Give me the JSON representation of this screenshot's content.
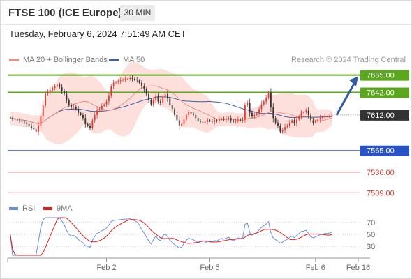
{
  "header": {
    "title": "FTSE 100 (ICE Europe)",
    "timeframe": "30 MIN"
  },
  "datetime": "Tuesday, February 6, 2024 7:51:49 AM CET",
  "legend": {
    "ma20_label": "MA 20 + Bollinger Bands",
    "ma50_label": "MA 50",
    "credit": "Research © 2024 Trading Central"
  },
  "rsi_legend": {
    "rsi_label": "RSI",
    "ma_label": "9MA"
  },
  "colors": {
    "up": "#e8392e",
    "down": "#333333",
    "ma20": "#f08c80",
    "ma50": "#3b5fa8",
    "bands": "#fde0dc",
    "resistance": "#5ba81e",
    "support": "#2952c7",
    "support_light": "#f3a49c",
    "rsi": "#6a8fe0",
    "rsi_ma": "#e21f1f",
    "arrow": "#2f5da0"
  },
  "chart_data": [
    {
      "type": "candlestick",
      "title": "FTSE 100 (ICE Europe)",
      "timeframe": "30 MIN",
      "x_tick_labels": [
        "Feb 2",
        "Feb 5",
        "Feb 6",
        "Feb 16"
      ],
      "ylim": [
        7500,
        7672
      ],
      "current_price": 7612.0,
      "forecast_target": 7665.0,
      "levels": [
        {
          "value": 7665.0,
          "label": "7665.00",
          "kind": "resistance"
        },
        {
          "value": 7642.0,
          "label": "7642.00",
          "kind": "resistance"
        },
        {
          "value": 7612.0,
          "label": "7612.00",
          "kind": "current"
        },
        {
          "value": 7565.0,
          "label": "7565.00",
          "kind": "support"
        },
        {
          "value": 7536.0,
          "label": "7536.00",
          "kind": "support_minor"
        },
        {
          "value": 7509.0,
          "label": "7509.00",
          "kind": "support_minor"
        }
      ],
      "closes": [
        7608,
        7607,
        7606,
        7605,
        7604,
        7603,
        7602,
        7600,
        7598,
        7595,
        7593,
        7590,
        7598,
        7610,
        7625,
        7640,
        7643,
        7645,
        7648,
        7650,
        7652,
        7649,
        7644,
        7640,
        7632,
        7625,
        7622,
        7623,
        7620,
        7615,
        7612,
        7608,
        7600,
        7598,
        7595,
        7605,
        7612,
        7618,
        7620,
        7624,
        7626,
        7630,
        7638,
        7650,
        7655,
        7656,
        7657,
        7658,
        7659,
        7660,
        7660,
        7661,
        7660,
        7659,
        7658,
        7655,
        7650,
        7646,
        7640,
        7632,
        7626,
        7632,
        7638,
        7630,
        7628,
        7636,
        7640,
        7634,
        7625,
        7620,
        7612,
        7605,
        7598,
        7600,
        7606,
        7612,
        7616,
        7614,
        7612,
        7608,
        7604,
        7603,
        7602,
        7603,
        7605,
        7604,
        7603,
        7605,
        7604,
        7606,
        7607,
        7606,
        7607,
        7608,
        7605,
        7603,
        7605,
        7606,
        7605,
        7606,
        7625,
        7628,
        7615,
        7610,
        7612,
        7614,
        7620,
        7626,
        7630,
        7635,
        7642,
        7622,
        7608,
        7602,
        7598,
        7590,
        7592,
        7596,
        7598,
        7602,
        7605,
        7601,
        7606,
        7610,
        7615,
        7616,
        7618,
        7612,
        7605,
        7602,
        7604,
        7606,
        7608,
        7609,
        7610,
        7610,
        7611,
        7612
      ]
    },
    {
      "type": "line",
      "title": "RSI",
      "series": [
        {
          "name": "RSI"
        },
        {
          "name": "9MA"
        }
      ],
      "y_tick_labels": [
        "70",
        "50",
        "30"
      ],
      "ylim": [
        15,
        78
      ]
    }
  ]
}
